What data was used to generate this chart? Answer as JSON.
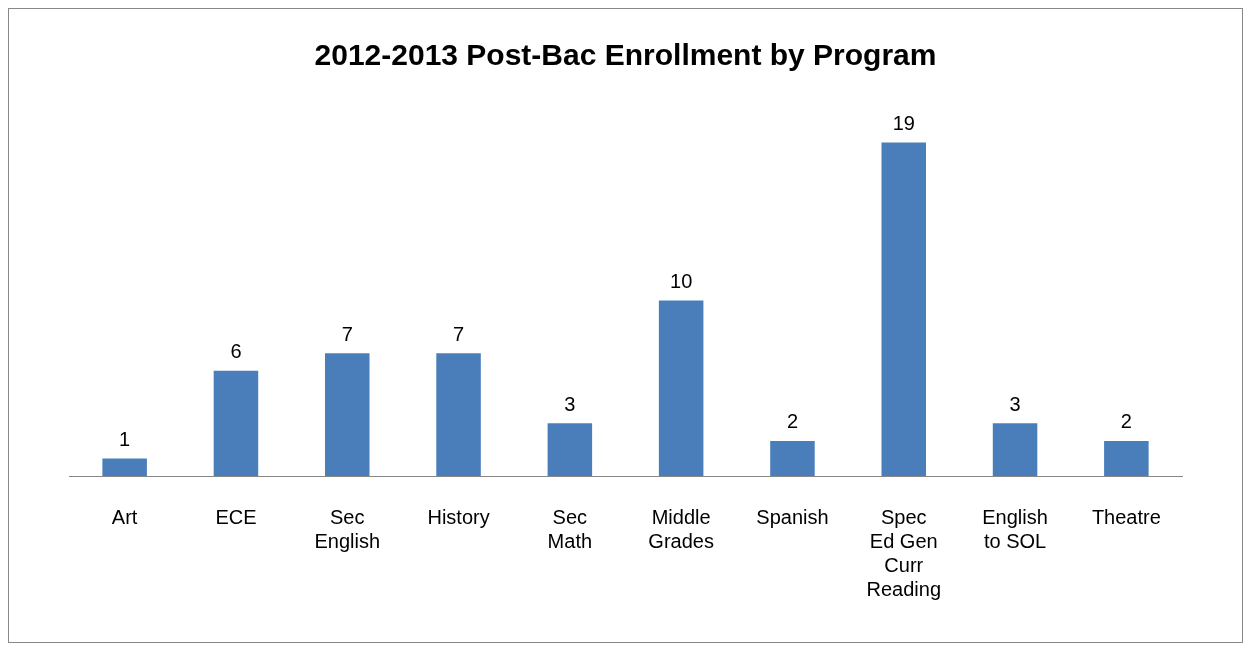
{
  "chart_data": {
    "type": "bar",
    "title": "2012-2013 Post-Bac Enrollment by Program",
    "categories": [
      "Art",
      "ECE",
      "Sec English",
      "History",
      "Sec Math",
      "Middle Grades",
      "Spanish",
      "Spec Ed Gen Curr Reading",
      "English to SOL",
      "Theatre"
    ],
    "values": [
      1,
      6,
      7,
      7,
      3,
      10,
      2,
      19,
      3,
      2
    ],
    "color": "#4a7ebb",
    "data_labels": true,
    "grid": false,
    "legend": false
  }
}
